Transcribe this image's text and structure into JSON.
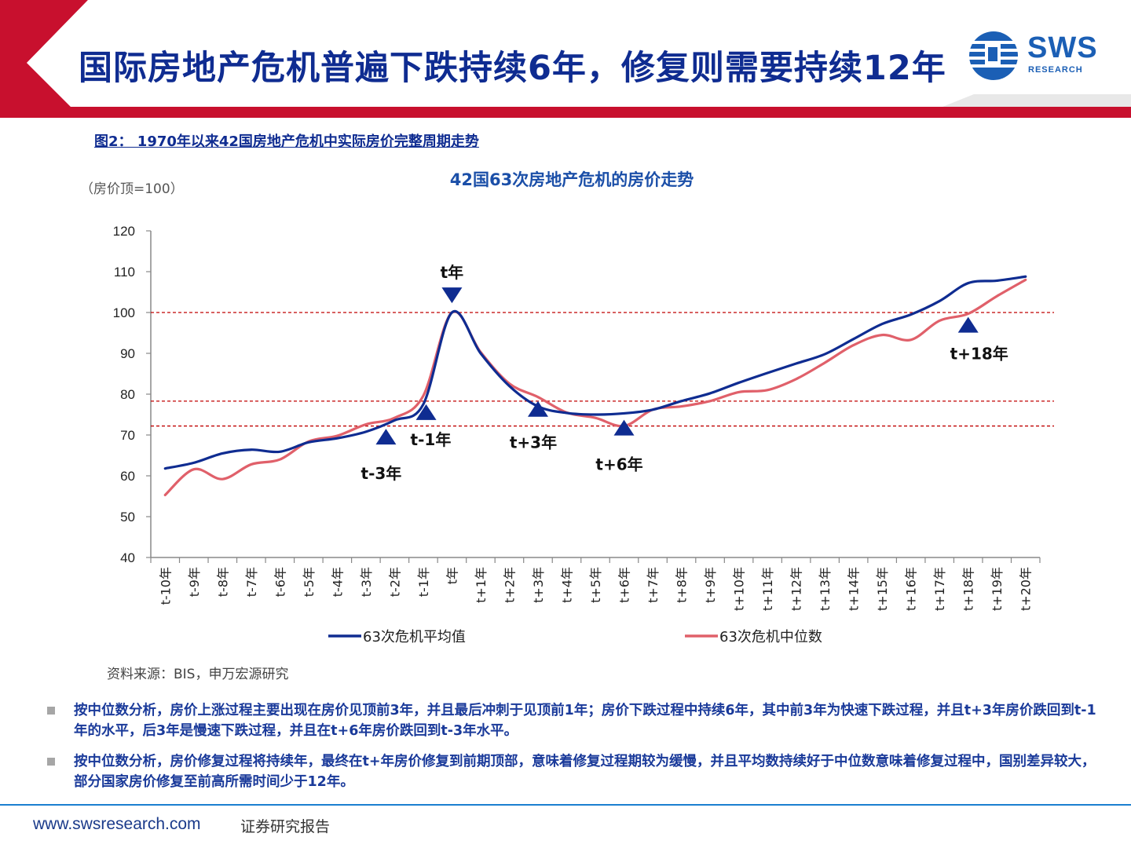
{
  "header": {
    "title": "国际房地产危机普遍下跌持续6年，修复则需要持续12年",
    "logo_text": "SWS",
    "logo_sub": "RESEARCH"
  },
  "figure_caption": "图2： 1970年以来42国房地产危机中实际房价完整周期走势",
  "chart_data": {
    "type": "line",
    "title": "42国63次房地产危机的房价走势",
    "ylabel": "（房价顶=100）",
    "xlabel": "",
    "ylim": [
      40,
      120
    ],
    "yticks": [
      40,
      50,
      60,
      70,
      80,
      90,
      100,
      110,
      120
    ],
    "categories": [
      "t-10年",
      "t-9年",
      "t-8年",
      "t-7年",
      "t-6年",
      "t-5年",
      "t-4年",
      "t-3年",
      "t-2年",
      "t-1年",
      "t年",
      "t+1年",
      "t+2年",
      "t+3年",
      "t+4年",
      "t+5年",
      "t+6年",
      "t+7年",
      "t+8年",
      "t+9年",
      "t+10年",
      "t+11年",
      "t+12年",
      "t+13年",
      "t+14年",
      "t+15年",
      "t+16年",
      "t+17年",
      "t+18年",
      "t+19年",
      "t+20年"
    ],
    "series": [
      {
        "name": "63次危机平均值",
        "color": "#0f2c91",
        "values": [
          61.8,
          63.2,
          65.5,
          66.4,
          65.9,
          68.2,
          69.2,
          70.8,
          73.6,
          77.5,
          100.0,
          90.0,
          82.0,
          77.0,
          75.4,
          75.0,
          75.3,
          76.2,
          78.3,
          80.2,
          82.8,
          85.2,
          87.5,
          89.8,
          93.5,
          97.2,
          99.5,
          102.8,
          107.2,
          107.8,
          108.8
        ]
      },
      {
        "name": "63次危机中位数",
        "color": "#e0606a",
        "values": [
          55.3,
          61.6,
          59.2,
          62.8,
          64.0,
          68.4,
          69.8,
          72.6,
          74.2,
          79.6,
          100.0,
          90.3,
          82.6,
          79.3,
          75.5,
          74.2,
          72.2,
          76.2,
          77.0,
          78.3,
          80.5,
          81.0,
          83.7,
          87.7,
          92.0,
          94.5,
          93.3,
          98.0,
          99.7,
          104.0,
          108.0
        ]
      }
    ],
    "reference_lines": [
      100,
      78.3,
      72.2
    ],
    "annotations": [
      {
        "label": "t-3年",
        "x_index": 7.7,
        "y": 69.6,
        "direction": "up"
      },
      {
        "label": "t-1年",
        "x_index": 9.1,
        "y": 75.6,
        "direction": "up"
      },
      {
        "label": "t年",
        "x_index": 10.0,
        "y": 104.2,
        "direction": "down"
      },
      {
        "label": "t+3年",
        "x_index": 13.0,
        "y": 76.4,
        "direction": "up"
      },
      {
        "label": "t+6年",
        "x_index": 16.0,
        "y": 71.8,
        "direction": "up"
      },
      {
        "label": "t+18年",
        "x_index": 28.0,
        "y": 97.0,
        "direction": "up"
      }
    ],
    "grid": false,
    "legend_position": "bottom"
  },
  "source": "资料来源：BIS，申万宏源研究",
  "bullets": [
    "按中位数分析，房价上涨过程主要出现在房价见顶前3年，并且最后冲刺于见顶前1年；房价下跌过程中持续6年，其中前3年为快速下跌过程，并且t+3年房价跌回到t-1年的水平，后3年是慢速下跌过程，并且在t+6年房价跌回到t-3年水平。",
    "按中位数分析，房价修复过程将持续年，最终在t+年房价修复到前期顶部，意味着修复过程期较为缓慢，并且平均数持续好于中位数意味着修复过程中，国别差异较大，部分国家房价修复至前高所需时间少于12年。"
  ],
  "footer": {
    "url": "www.swsresearch.com",
    "label": "证券研究报告"
  },
  "colors": {
    "title_blue": "#0f2c91",
    "header_red": "#c8102e",
    "footer_line": "#1b7fd0",
    "ref_line": "#c00000"
  }
}
